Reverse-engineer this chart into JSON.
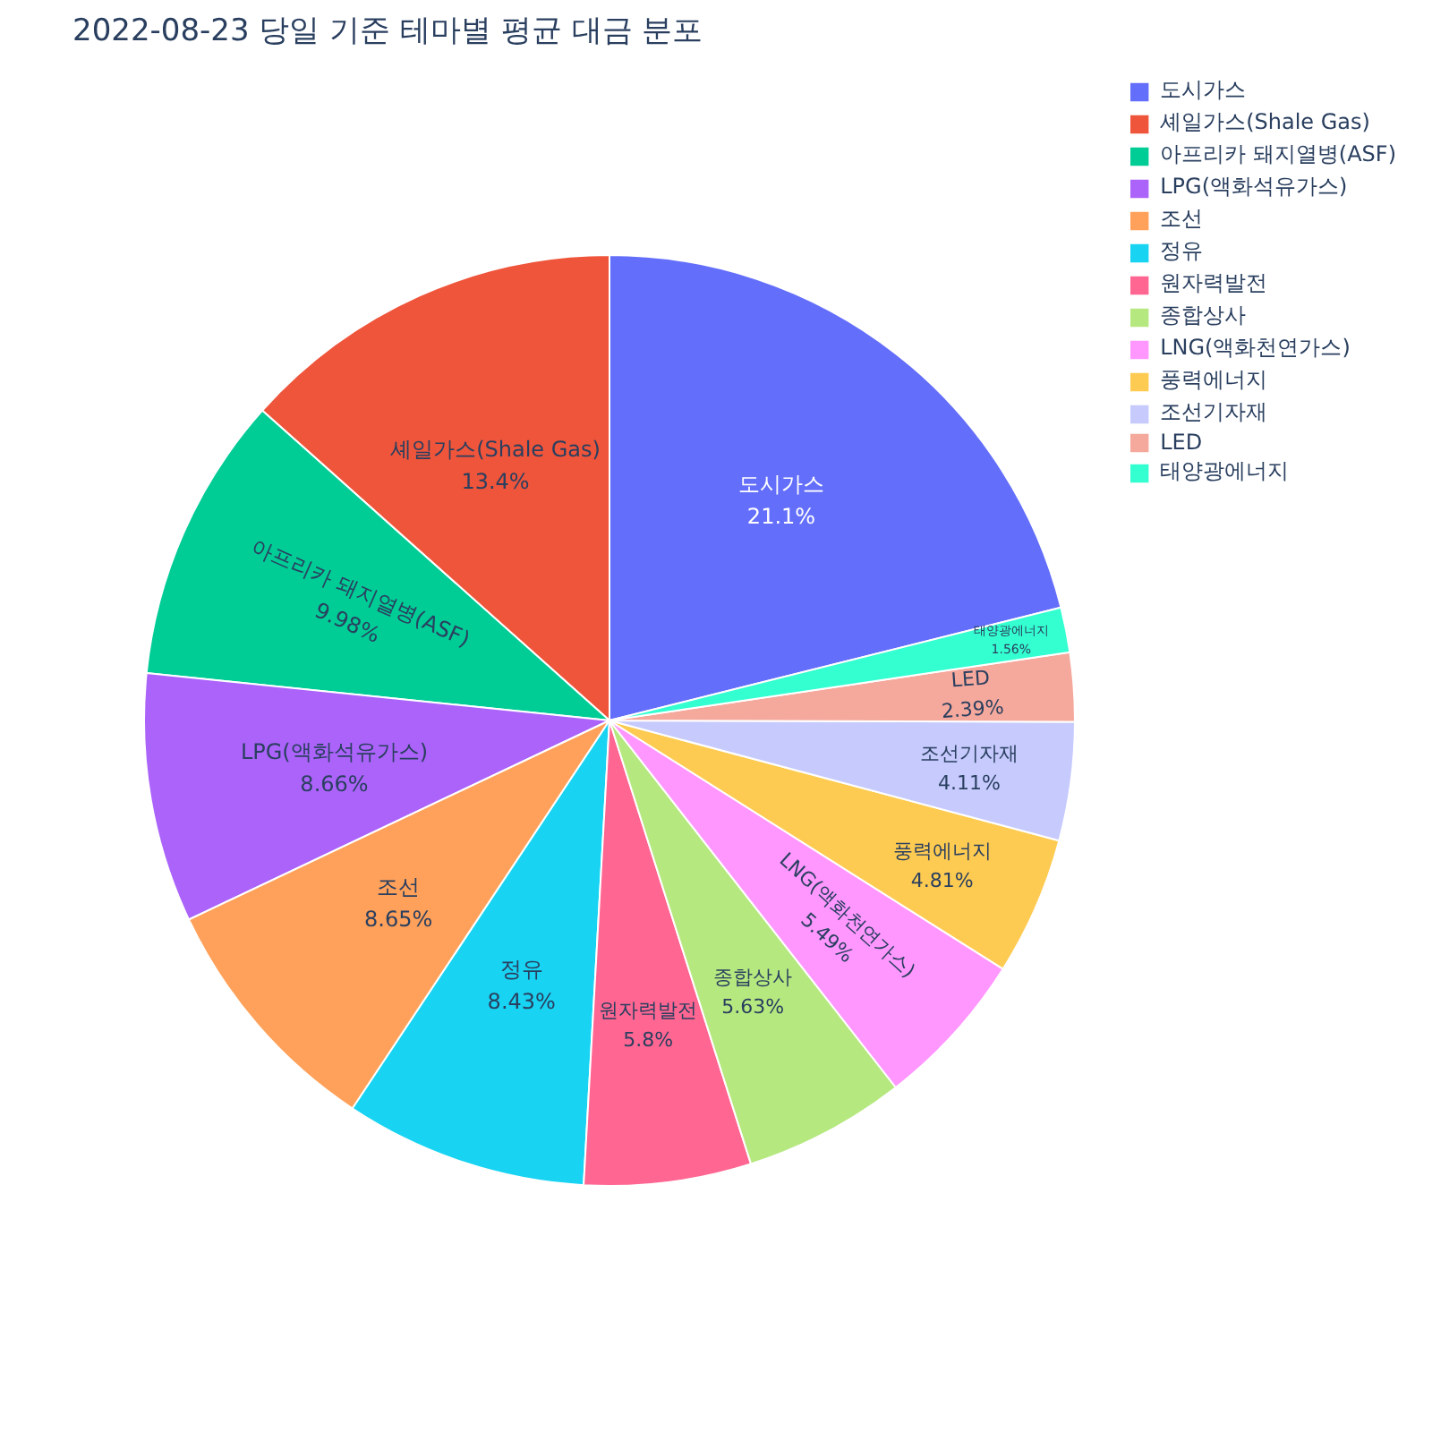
{
  "chart_data": {
    "type": "pie",
    "title": "2022-08-23 당일 기준 테마별 평균 대금 분포",
    "categories": [
      "도시가스",
      "셰일가스(Shale Gas)",
      "아프리카 돼지열병(ASF)",
      "LPG(액화석유가스)",
      "조선",
      "정유",
      "원자력발전",
      "종합상사",
      "LNG(액화천연가스)",
      "풍력에너지",
      "조선기자재",
      "LED",
      "태양광에너지"
    ],
    "values": [
      21.1,
      13.4,
      9.98,
      8.66,
      8.65,
      8.43,
      5.8,
      5.63,
      5.49,
      4.81,
      4.11,
      2.39,
      1.56
    ],
    "value_labels": [
      "21.1%",
      "13.4%",
      "9.98%",
      "8.66%",
      "8.65%",
      "8.43%",
      "5.8%",
      "5.63%",
      "5.49%",
      "4.81%",
      "4.11%",
      "2.39%",
      "1.56%"
    ],
    "colors": [
      "#636efa",
      "#ef553b",
      "#00cc96",
      "#ab63fa",
      "#ffa15a",
      "#19d3f3",
      "#ff6692",
      "#b6e880",
      "#ff97ff",
      "#fecb52",
      "#c6cafd",
      "#f5a89c",
      "#33ffd0"
    ],
    "legend": "top right"
  }
}
